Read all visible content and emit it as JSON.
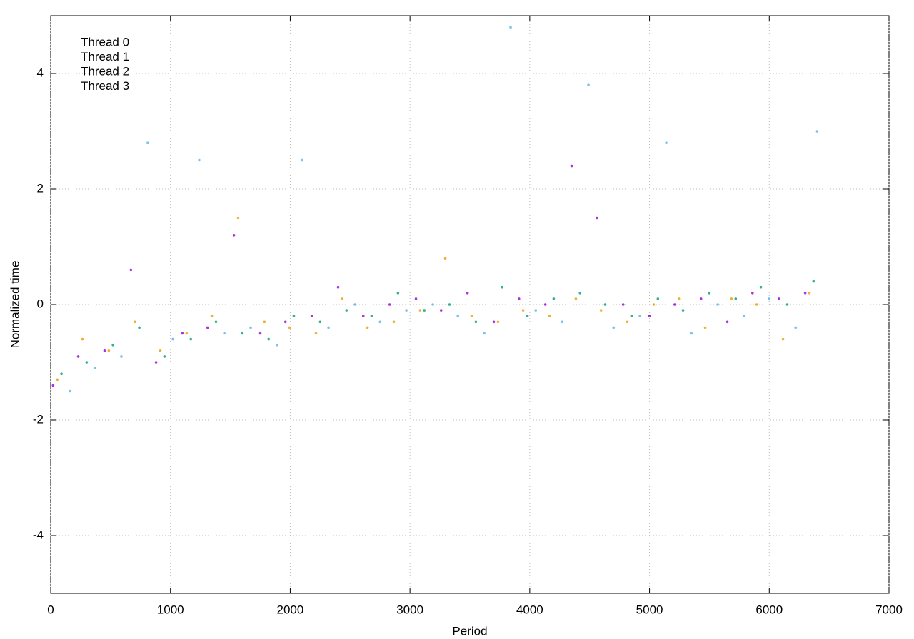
{
  "chart_data": {
    "type": "scatter",
    "xlabel": "Period",
    "ylabel": "Normalized time",
    "xlim": [
      0,
      7000
    ],
    "xticks": [
      0,
      1000,
      2000,
      3000,
      4000,
      5000,
      6000,
      7000
    ],
    "ylim": [
      -5,
      5
    ],
    "yticks": [
      -4,
      -2,
      0,
      2,
      4
    ],
    "grid": true,
    "legend": "upper left",
    "series": [
      {
        "name": "Thread 0",
        "color": "#9400d3",
        "x": [
          20,
          230,
          450,
          670,
          880,
          1100,
          1310,
          1530,
          1750,
          1960,
          2180,
          2400,
          2610,
          2830,
          3050,
          3260,
          3480,
          3700,
          3910,
          4130,
          4350,
          4560,
          4780,
          5000,
          5210,
          5430,
          5650,
          5860,
          6080,
          6300
        ],
        "values": [
          -1.4,
          -0.9,
          -0.8,
          0.6,
          -1.0,
          -0.5,
          -0.4,
          1.2,
          -0.5,
          -0.3,
          -0.2,
          0.3,
          -0.2,
          0.0,
          0.1,
          -0.1,
          0.2,
          -0.3,
          0.1,
          0.0,
          2.4,
          1.5,
          0.0,
          -0.2,
          0.0,
          0.1,
          -0.3,
          0.2,
          0.1,
          0.2
        ]
      },
      {
        "name": "Thread 1",
        "color": "#009e73",
        "x": [
          90,
          300,
          520,
          740,
          950,
          1170,
          1380,
          1600,
          1820,
          2030,
          2250,
          2470,
          2680,
          2900,
          3120,
          3330,
          3550,
          3770,
          3980,
          4200,
          4420,
          4630,
          4850,
          5070,
          5280,
          5500,
          5720,
          5930,
          6150,
          6370
        ],
        "values": [
          -1.2,
          -1.0,
          -0.7,
          -0.4,
          -0.9,
          -0.6,
          -0.3,
          -0.5,
          -0.6,
          -0.2,
          -0.3,
          -0.1,
          -0.2,
          0.2,
          -0.1,
          0.0,
          -0.3,
          0.3,
          -0.2,
          0.1,
          0.2,
          0.0,
          -0.2,
          0.1,
          -0.1,
          0.2,
          0.1,
          0.3,
          0.0,
          0.4
        ]
      },
      {
        "name": "Thread 2",
        "color": "#56b4e9",
        "x": [
          160,
          370,
          590,
          810,
          1020,
          1240,
          1450,
          1670,
          1890,
          2100,
          2320,
          2540,
          2750,
          2970,
          3190,
          3400,
          3620,
          3840,
          4050,
          4270,
          4490,
          4700,
          4920,
          5140,
          5350,
          5570,
          5790,
          6000,
          6220,
          6400
        ],
        "values": [
          -1.5,
          -1.1,
          -0.9,
          2.8,
          -0.6,
          2.5,
          -0.5,
          -0.4,
          -0.7,
          2.5,
          -0.4,
          0.0,
          -0.3,
          -0.1,
          0.0,
          -0.2,
          -0.5,
          4.8,
          -0.1,
          -0.3,
          3.8,
          -0.4,
          -0.2,
          2.8,
          -0.5,
          0.0,
          -0.2,
          0.1,
          -0.4,
          3.0
        ]
      },
      {
        "name": "Thread 3",
        "color": "#e69f00",
        "x": [
          55,
          265,
          485,
          705,
          915,
          1135,
          1345,
          1565,
          1785,
          1995,
          2215,
          2435,
          2645,
          2865,
          3085,
          3295,
          3515,
          3735,
          3945,
          4165,
          4385,
          4595,
          4815,
          5035,
          5245,
          5465,
          5685,
          5895,
          6115,
          6335
        ],
        "values": [
          -1.3,
          -0.6,
          -0.8,
          -0.3,
          -0.8,
          -0.5,
          -0.2,
          1.5,
          -0.3,
          -0.4,
          -0.5,
          0.1,
          -0.4,
          -0.3,
          -0.1,
          0.8,
          -0.2,
          -0.3,
          -0.1,
          -0.2,
          0.1,
          -0.1,
          -0.3,
          0.0,
          0.1,
          -0.4,
          0.1,
          0.0,
          -0.6,
          0.2
        ]
      }
    ]
  }
}
